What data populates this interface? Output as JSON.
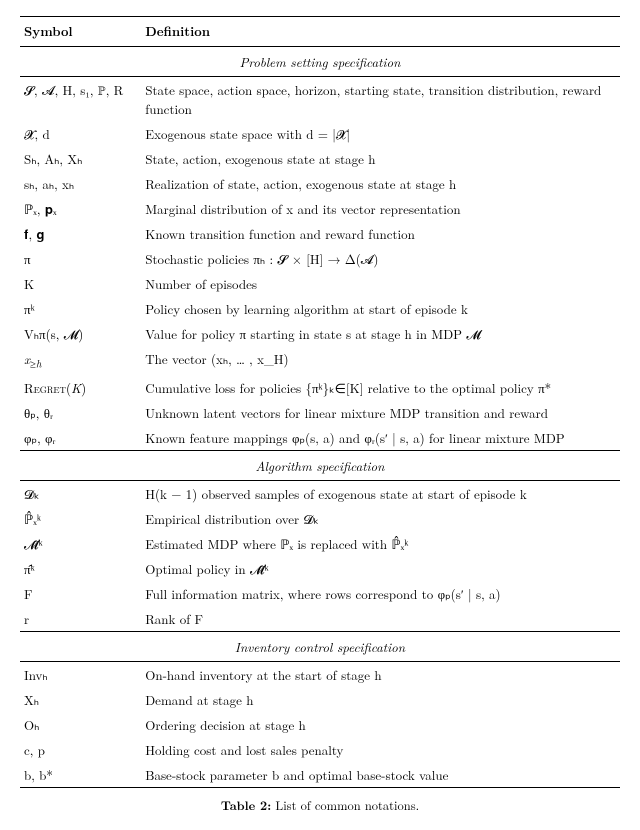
{
  "header": {
    "symbol": "Symbol",
    "definition": "Definition"
  },
  "sections": {
    "problem": "Problem setting specification",
    "algorithm": "Algorithm specification",
    "inventory": "Inventory control specification"
  },
  "rows": {
    "problem": [
      {
        "sym": "𝓢, 𝓐, H, s₁, ℙ, R",
        "def": "State space, action space, horizon, starting state, transition distribution, reward function"
      },
      {
        "sym": "𝓧, d",
        "def": "Exogenous state space with d = |𝓧|"
      },
      {
        "sym": "Sₕ, Aₕ, Xₕ",
        "def": "State, action, exogenous state at stage h"
      },
      {
        "sym": "sₕ, aₕ, xₕ",
        "def": "Realization of state, action, exogenous state at stage h"
      },
      {
        "sym": "ℙₓ, 𝐩ₓ",
        "def": "Marginal distribution of x and its vector representation"
      },
      {
        "sym": "𝐟, 𝐠",
        "def": "Known transition function and reward function"
      },
      {
        "sym": "π",
        "def": "Stochastic policies πₕ : 𝓢 × [H] → Δ(𝓐)"
      },
      {
        "sym": "K",
        "def": "Number of episodes"
      },
      {
        "sym": "πᵏ",
        "def": "Policy chosen by learning algorithm at start of episode k"
      },
      {
        "sym": "Vₕπ(s, 𝓜)",
        "def": "Value for policy π starting in state s at stage h in MDP 𝓜"
      },
      {
        "sym": "x≥h",
        "def": "The vector (xₕ, … , x_H)"
      },
      {
        "sym": "Regret(K)",
        "def": "Cumulative loss for policies {πᵏ}ₖ∈[K] relative to the optimal policy π*"
      },
      {
        "sym": "θₚ, θᵣ",
        "def": "Unknown latent vectors for linear mixture MDP transition and reward"
      },
      {
        "sym": "φₚ, φᵣ",
        "def": "Known feature mappings φₚ(s, a) and φᵣ(s′ | s, a) for linear mixture MDP"
      }
    ],
    "algorithm": [
      {
        "sym": "𝓓ₖ",
        "def": "H(k − 1) observed samples of exogenous state at start of episode k"
      },
      {
        "sym": "ℙ̂ₓᵏ",
        "def": "Empirical distribution over 𝓓ₖ"
      },
      {
        "sym": "𝓜̂ᵏ",
        "def": "Estimated MDP where ℙₓ is replaced with ℙ̂ₓᵏ"
      },
      {
        "sym": "π̂ᵏ",
        "def": "Optimal policy in 𝓜̂ᵏ"
      },
      {
        "sym": "F",
        "def": "Full information matrix, where rows correspond to φₚ(s′ | s, a)"
      },
      {
        "sym": "r",
        "def": "Rank of F"
      }
    ],
    "inventory": [
      {
        "sym": "Invₕ",
        "def": "On-hand inventory at the start of stage h"
      },
      {
        "sym": "Xₕ",
        "def": "Demand at stage h"
      },
      {
        "sym": "Oₕ",
        "def": "Ordering decision at stage h"
      },
      {
        "sym": "c, p",
        "def": "Holding cost and lost sales penalty"
      },
      {
        "sym": "b, b*",
        "def": "Base-stock parameter b and optimal base-stock value"
      }
    ]
  },
  "caption": {
    "label": "Table 2:",
    "text": "List of common notations."
  }
}
